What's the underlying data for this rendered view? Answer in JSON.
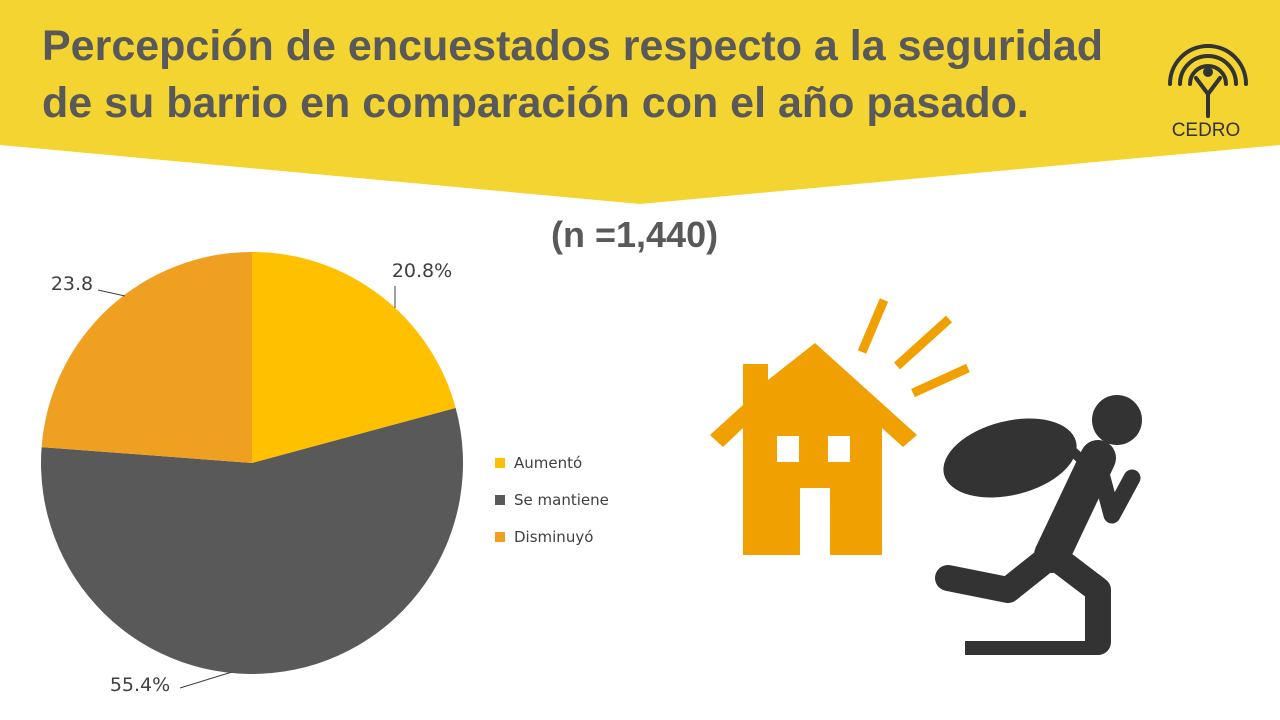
{
  "header": {
    "title_line1": "Percepción de encuestados respecto a la seguridad",
    "title_line2": "de su barrio en comparación con el año pasado.",
    "logo_text": "CEDRO",
    "banner_color": "#F4D430"
  },
  "chart_data": {
    "type": "pie",
    "subtitle": "(n =1,440)",
    "categories": [
      "Aumentó",
      "Se mantiene",
      "Disminuyó"
    ],
    "values": [
      20.8,
      55.4,
      23.8
    ],
    "data_labels": [
      "20.8%",
      "55.4%",
      "23.8"
    ],
    "colors": [
      "#FFC000",
      "#595959",
      "#F0A020"
    ],
    "legend_position": "right"
  },
  "illustration": {
    "icons": [
      "house-icon",
      "burglar-icon"
    ],
    "house_color": "#F0A000",
    "figure_color": "#333333"
  }
}
